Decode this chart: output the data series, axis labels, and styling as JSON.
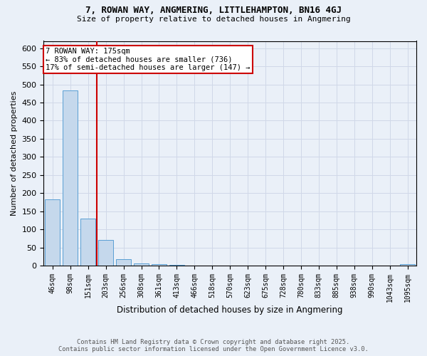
{
  "title1": "7, ROWAN WAY, ANGMERING, LITTLEHAMPTON, BN16 4GJ",
  "title2": "Size of property relative to detached houses in Angmering",
  "xlabel": "Distribution of detached houses by size in Angmering",
  "ylabel": "Number of detached properties",
  "bar_labels": [
    "46sqm",
    "98sqm",
    "151sqm",
    "203sqm",
    "256sqm",
    "308sqm",
    "361sqm",
    "413sqm",
    "466sqm",
    "518sqm",
    "570sqm",
    "623sqm",
    "675sqm",
    "728sqm",
    "780sqm",
    "833sqm",
    "885sqm",
    "938sqm",
    "990sqm",
    "1043sqm",
    "1095sqm"
  ],
  "bar_values": [
    183,
    483,
    130,
    70,
    18,
    7,
    4,
    3,
    0,
    0,
    0,
    0,
    0,
    0,
    0,
    0,
    0,
    0,
    0,
    0,
    4
  ],
  "bar_color": "#c5d8ec",
  "bar_edge_color": "#5a9fd4",
  "grid_color": "#d0d8e8",
  "background_color": "#eaf0f8",
  "red_line_index": 2,
  "annotation_text": "7 ROWAN WAY: 175sqm\n← 83% of detached houses are smaller (736)\n17% of semi-detached houses are larger (147) →",
  "annotation_box_color": "#ffffff",
  "annotation_border_color": "#cc0000",
  "red_line_color": "#cc0000",
  "footer_line1": "Contains HM Land Registry data © Crown copyright and database right 2025.",
  "footer_line2": "Contains public sector information licensed under the Open Government Licence v3.0.",
  "ylim": [
    0,
    620
  ],
  "yticks": [
    0,
    50,
    100,
    150,
    200,
    250,
    300,
    350,
    400,
    450,
    500,
    550,
    600
  ]
}
